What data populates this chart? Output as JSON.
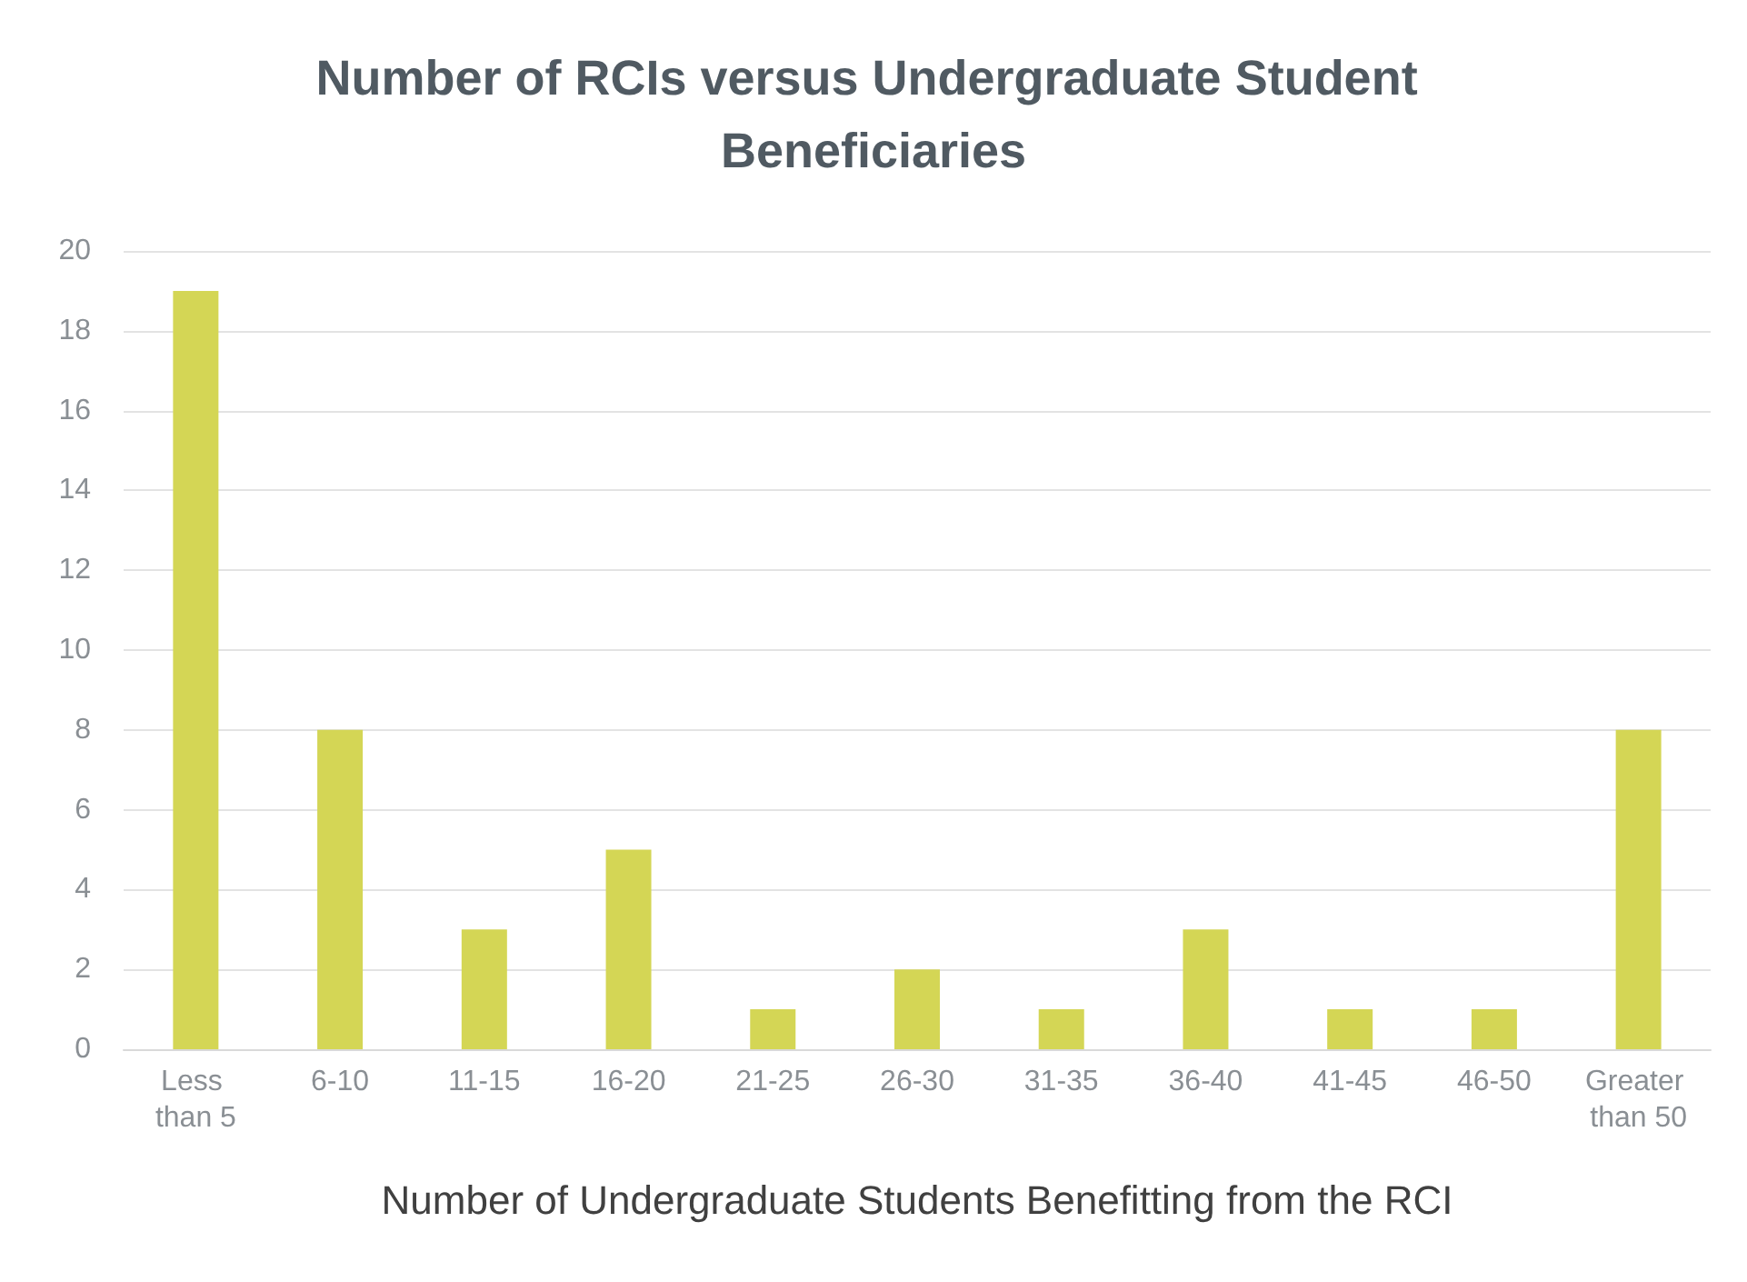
{
  "chart_data": {
    "type": "bar",
    "title": "Number of RCIs versus Undergraduate Student Beneficiaries",
    "xlabel": "Number of Undergraduate Students Benefitting from the RCI",
    "categories": [
      "Less than 5",
      "6-10",
      "11-15",
      "16-20",
      "21-25",
      "26-30",
      "31-35",
      "36-40",
      "41-45",
      "46-50",
      "Greater than 50"
    ],
    "values": [
      19,
      8,
      3,
      5,
      1,
      2,
      1,
      3,
      1,
      1,
      8
    ],
    "color": "#d4d655",
    "ylim": [
      0,
      20
    ],
    "yticks": [
      0,
      2,
      4,
      6,
      8,
      10,
      12,
      14,
      16,
      18,
      20
    ],
    "grid": "y"
  }
}
